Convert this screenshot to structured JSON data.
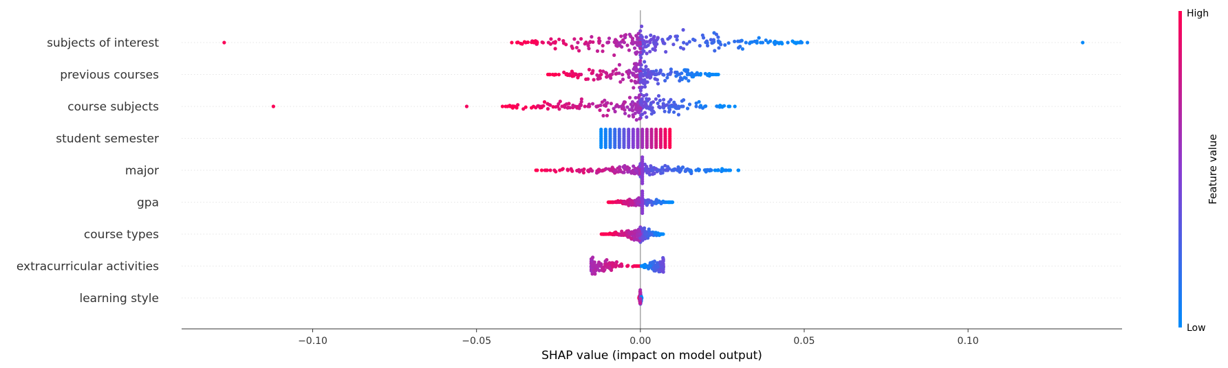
{
  "chart_data": {
    "type": "scatter",
    "subtype": "shap-beeswarm",
    "title": "",
    "xlabel": "SHAP value (impact on model output)",
    "xlim": [
      -0.14,
      0.147
    ],
    "xticks": [
      {
        "value": -0.1,
        "label": "−0.10"
      },
      {
        "value": -0.05,
        "label": "−0.05"
      },
      {
        "value": 0.0,
        "label": "0.00"
      },
      {
        "value": 0.05,
        "label": "0.05"
      },
      {
        "value": 0.1,
        "label": "0.10"
      }
    ],
    "zero_line": 0.0,
    "colorbar": {
      "title": "Feature value",
      "high_label": "High",
      "low_label": "Low",
      "high_color": "#ff0052",
      "low_color": "#008bfb"
    },
    "features": [
      {
        "name": "subjects of interest",
        "low_span": [
          0.0,
          0.052
        ],
        "high_span": [
          -0.04,
          0.0
        ],
        "width": 0.03,
        "max_stack": 12,
        "outliers": [
          {
            "x": -0.127,
            "v": 0.98
          },
          {
            "x": 0.135,
            "v": 0.02
          },
          {
            "x": 0.051,
            "v": 0.05
          },
          {
            "x": 0.049,
            "v": 0.05
          },
          {
            "x": 0.045,
            "v": 0.06
          },
          {
            "x": 0.039,
            "v": 0.05
          }
        ]
      },
      {
        "name": "previous courses",
        "low_span": [
          0.0,
          0.024
        ],
        "high_span": [
          -0.029,
          0.0
        ],
        "width": 0.022,
        "max_stack": 10,
        "outliers": []
      },
      {
        "name": "course subjects",
        "low_span": [
          0.0,
          0.029
        ],
        "high_span": [
          -0.043,
          0.0
        ],
        "width": 0.022,
        "max_stack": 9,
        "outliers": [
          {
            "x": -0.112,
            "v": 0.98
          },
          {
            "x": -0.053,
            "v": 0.95
          }
        ]
      },
      {
        "name": "student semester",
        "low_span": [
          -0.012,
          -0.003
        ],
        "high_span": [
          0.001,
          0.009
        ],
        "width": 0.0,
        "max_stack": 5,
        "column_style": true,
        "outliers": []
      },
      {
        "name": "major",
        "low_span": [
          0.0,
          0.03
        ],
        "high_span": [
          -0.033,
          0.0
        ],
        "width": 0.012,
        "max_stack": 4,
        "center_spike": 6,
        "outliers": []
      },
      {
        "name": "gpa",
        "low_span": [
          0.0,
          0.01
        ],
        "high_span": [
          -0.01,
          0.0
        ],
        "width": 0.006,
        "max_stack": 3,
        "center_spike": 5,
        "outliers": []
      },
      {
        "name": "course types",
        "low_span": [
          0.0,
          0.007
        ],
        "high_span": [
          -0.012,
          0.0
        ],
        "width": 0.004,
        "max_stack": 5,
        "outliers": []
      },
      {
        "name": "extracurricular activities",
        "low_span": [
          -0.015,
          0.0
        ],
        "high_span": [
          0.0,
          0.007
        ],
        "width": 0.003,
        "max_stack": 6,
        "outliers": []
      },
      {
        "name": "learning style",
        "low_span": [
          0.0,
          0.0004
        ],
        "high_span": [
          -0.0004,
          0.0
        ],
        "width": 0.0005,
        "max_stack": 5,
        "outliers": []
      }
    ]
  }
}
